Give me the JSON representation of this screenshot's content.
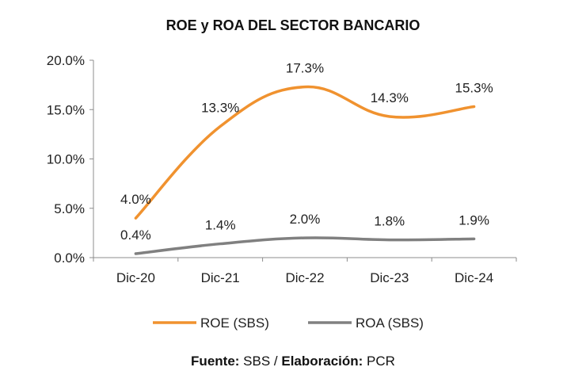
{
  "chart_data": {
    "type": "line",
    "title": "ROE y ROA DEL SECTOR BANCARIO",
    "categories": [
      "Dic-20",
      "Dic-21",
      "Dic-22",
      "Dic-23",
      "Dic-24"
    ],
    "series": [
      {
        "name": "ROE (SBS)",
        "values": [
          4.0,
          13.3,
          17.3,
          14.3,
          15.3
        ],
        "labels": [
          "4.0%",
          "13.3%",
          "17.3%",
          "14.3%",
          "15.3%"
        ],
        "color": "#F0922F"
      },
      {
        "name": "ROA (SBS)",
        "values": [
          0.4,
          1.4,
          2.0,
          1.8,
          1.9
        ],
        "labels": [
          "0.4%",
          "1.4%",
          "2.0%",
          "1.8%",
          "1.9%"
        ],
        "color": "#808080"
      }
    ],
    "ylim": [
      0,
      20
    ],
    "yticks": [
      0,
      5,
      10,
      15,
      20
    ],
    "ytick_labels": [
      "0.0%",
      "5.0%",
      "10.0%",
      "15.0%",
      "20.0%"
    ],
    "grid": false,
    "legend_position": "bottom"
  },
  "source": {
    "label1": "Fuente:",
    "text1": " SBS / ",
    "label2": "Elaboración:",
    "text2": " PCR"
  }
}
